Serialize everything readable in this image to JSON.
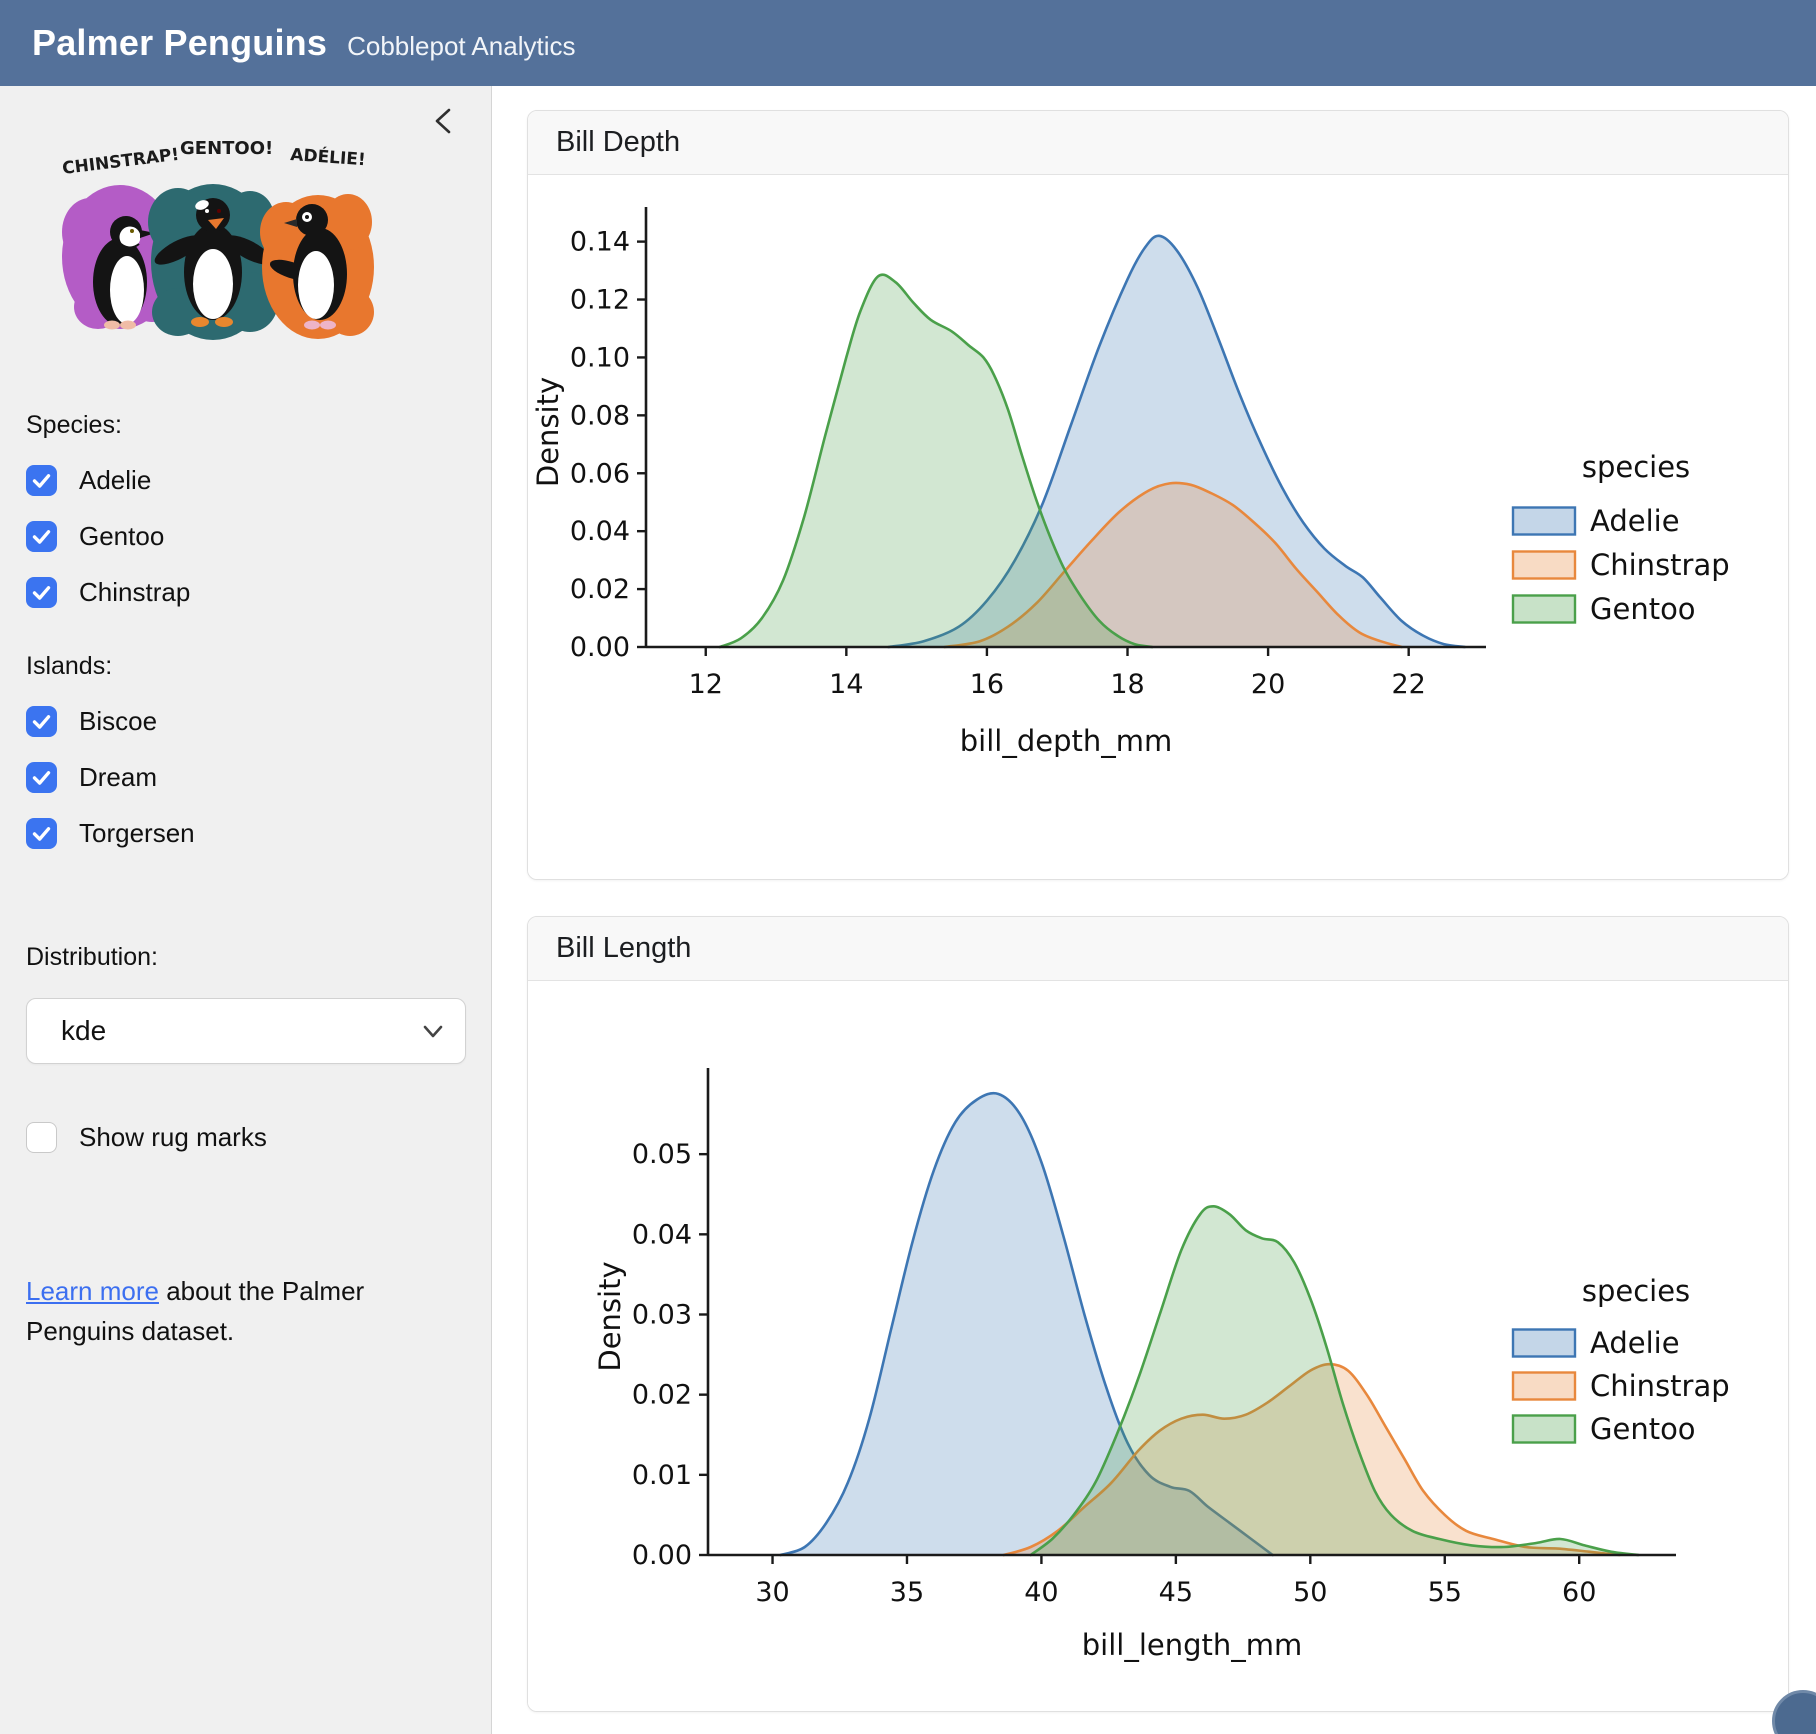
{
  "header": {
    "title": "Palmer Penguins",
    "subtitle": "Cobblepot Analytics"
  },
  "sidebar": {
    "artwork": {
      "labels": [
        "CHINSTRAP!",
        "GENTOO!",
        "ADÉLIE!"
      ]
    },
    "species": {
      "label": "Species:",
      "options": [
        {
          "label": "Adelie",
          "checked": true
        },
        {
          "label": "Gentoo",
          "checked": true
        },
        {
          "label": "Chinstrap",
          "checked": true
        }
      ]
    },
    "islands": {
      "label": "Islands:",
      "options": [
        {
          "label": "Biscoe",
          "checked": true
        },
        {
          "label": "Dream",
          "checked": true
        },
        {
          "label": "Torgersen",
          "checked": true
        }
      ]
    },
    "distribution": {
      "label": "Distribution:",
      "value": "kde"
    },
    "rug": {
      "label": "Show rug marks",
      "checked": false
    },
    "learn_more": {
      "link_text": "Learn more",
      "rest_text": " about the Palmer Penguins dataset."
    }
  },
  "cards": [
    {
      "title": "Bill Depth"
    },
    {
      "title": "Bill Length"
    }
  ],
  "colors": {
    "header_bg": "#54719a",
    "checkbox_blue": "#3b74f0",
    "link_blue": "#3c6ff0",
    "adelie": "#3d76b3",
    "chinstrap": "#e8883d",
    "gentoo": "#4aa04a"
  },
  "chart_data": [
    {
      "type": "area",
      "title": "Bill Depth",
      "xlabel": "bill_depth_mm",
      "ylabel": "Density",
      "xlim": [
        11.15,
        23.1
      ],
      "ylim": [
        0,
        0.1485
      ],
      "x_ticks": [
        12,
        14,
        16,
        18,
        20,
        22
      ],
      "x_tick_labels": [
        "12",
        "14",
        "16",
        "18",
        "20",
        "22"
      ],
      "y_ticks": [
        0.0,
        0.02,
        0.04,
        0.06,
        0.08,
        0.1,
        0.12,
        0.14
      ],
      "y_tick_labels": [
        "0.00",
        "0.02",
        "0.04",
        "0.06",
        "0.08",
        "0.10",
        "0.12",
        "0.14"
      ],
      "grid": false,
      "legend": {
        "title": "species",
        "position": "center right",
        "entries": [
          "Adelie",
          "Chinstrap",
          "Gentoo"
        ]
      },
      "series": [
        {
          "name": "Adelie",
          "color": "#3d76b3",
          "points": [
            [
              14.6,
              0
            ],
            [
              15.1,
              0.002
            ],
            [
              15.6,
              0.007
            ],
            [
              16.0,
              0.016
            ],
            [
              16.4,
              0.03
            ],
            [
              16.8,
              0.05
            ],
            [
              17.2,
              0.077
            ],
            [
              17.6,
              0.104
            ],
            [
              18.0,
              0.127
            ],
            [
              18.25,
              0.138
            ],
            [
              18.45,
              0.142
            ],
            [
              18.7,
              0.137
            ],
            [
              19.0,
              0.124
            ],
            [
              19.3,
              0.106
            ],
            [
              19.6,
              0.087
            ],
            [
              19.9,
              0.07
            ],
            [
              20.2,
              0.055
            ],
            [
              20.5,
              0.043
            ],
            [
              20.8,
              0.034
            ],
            [
              21.1,
              0.028
            ],
            [
              21.35,
              0.024
            ],
            [
              21.6,
              0.017
            ],
            [
              21.9,
              0.009
            ],
            [
              22.2,
              0.004
            ],
            [
              22.5,
              0.001
            ],
            [
              22.8,
              0
            ]
          ]
        },
        {
          "name": "Chinstrap",
          "color": "#e8883d",
          "points": [
            [
              15.4,
              0
            ],
            [
              15.9,
              0.002
            ],
            [
              16.3,
              0.007
            ],
            [
              16.7,
              0.015
            ],
            [
              17.1,
              0.026
            ],
            [
              17.5,
              0.037
            ],
            [
              17.9,
              0.047
            ],
            [
              18.3,
              0.054
            ],
            [
              18.6,
              0.0565
            ],
            [
              18.9,
              0.056
            ],
            [
              19.2,
              0.053
            ],
            [
              19.5,
              0.049
            ],
            [
              19.8,
              0.043
            ],
            [
              20.1,
              0.036
            ],
            [
              20.4,
              0.027
            ],
            [
              20.7,
              0.019
            ],
            [
              21.0,
              0.011
            ],
            [
              21.3,
              0.005
            ],
            [
              21.6,
              0.002
            ],
            [
              21.9,
              0
            ]
          ]
        },
        {
          "name": "Gentoo",
          "color": "#4aa04a",
          "points": [
            [
              12.2,
              0
            ],
            [
              12.5,
              0.003
            ],
            [
              12.8,
              0.01
            ],
            [
              13.1,
              0.023
            ],
            [
              13.4,
              0.045
            ],
            [
              13.7,
              0.073
            ],
            [
              14.0,
              0.1
            ],
            [
              14.2,
              0.116
            ],
            [
              14.45,
              0.128
            ],
            [
              14.7,
              0.126
            ],
            [
              14.95,
              0.119
            ],
            [
              15.2,
              0.113
            ],
            [
              15.5,
              0.109
            ],
            [
              15.75,
              0.104
            ],
            [
              15.95,
              0.1
            ],
            [
              16.1,
              0.094
            ],
            [
              16.3,
              0.082
            ],
            [
              16.5,
              0.066
            ],
            [
              16.7,
              0.051
            ],
            [
              16.9,
              0.038
            ],
            [
              17.1,
              0.027
            ],
            [
              17.35,
              0.017
            ],
            [
              17.6,
              0.009
            ],
            [
              17.85,
              0.004
            ],
            [
              18.1,
              0.001
            ],
            [
              18.35,
              0
            ]
          ]
        }
      ]
    },
    {
      "type": "area",
      "title": "Bill Length",
      "xlabel": "bill_length_mm",
      "ylabel": "Density",
      "xlim": [
        27.6,
        63.6
      ],
      "ylim": [
        0,
        0.0595
      ],
      "x_ticks": [
        30,
        35,
        40,
        45,
        50,
        55,
        60
      ],
      "x_tick_labels": [
        "30",
        "35",
        "40",
        "45",
        "50",
        "55",
        "60"
      ],
      "y_ticks": [
        0.0,
        0.01,
        0.02,
        0.03,
        0.04,
        0.05
      ],
      "y_tick_labels": [
        "0.00",
        "0.01",
        "0.02",
        "0.03",
        "0.04",
        "0.05"
      ],
      "grid": false,
      "legend": {
        "title": "species",
        "position": "center right",
        "entries": [
          "Adelie",
          "Chinstrap",
          "Gentoo"
        ]
      },
      "series": [
        {
          "name": "Adelie",
          "color": "#3d76b3",
          "points": [
            [
              30.3,
              0
            ],
            [
              31.2,
              0.001
            ],
            [
              32.0,
              0.004
            ],
            [
              32.8,
              0.009
            ],
            [
              33.6,
              0.017
            ],
            [
              34.4,
              0.028
            ],
            [
              35.2,
              0.039
            ],
            [
              36.0,
              0.048
            ],
            [
              36.8,
              0.054
            ],
            [
              37.6,
              0.0568
            ],
            [
              38.4,
              0.0575
            ],
            [
              39.2,
              0.055
            ],
            [
              40.0,
              0.049
            ],
            [
              40.8,
              0.04
            ],
            [
              41.6,
              0.03
            ],
            [
              42.4,
              0.021
            ],
            [
              43.2,
              0.014
            ],
            [
              44.0,
              0.01
            ],
            [
              44.8,
              0.0085
            ],
            [
              45.5,
              0.008
            ],
            [
              46.2,
              0.006
            ],
            [
              47.0,
              0.004
            ],
            [
              47.8,
              0.002
            ],
            [
              48.6,
              0
            ]
          ]
        },
        {
          "name": "Chinstrap",
          "color": "#e8883d",
          "points": [
            [
              38.6,
              0
            ],
            [
              39.6,
              0.001
            ],
            [
              40.6,
              0.003
            ],
            [
              41.6,
              0.006
            ],
            [
              42.6,
              0.009
            ],
            [
              43.6,
              0.013
            ],
            [
              44.4,
              0.0155
            ],
            [
              45.2,
              0.017
            ],
            [
              46.0,
              0.0175
            ],
            [
              46.8,
              0.017
            ],
            [
              47.6,
              0.0175
            ],
            [
              48.4,
              0.019
            ],
            [
              49.2,
              0.021
            ],
            [
              50.0,
              0.023
            ],
            [
              50.7,
              0.0238
            ],
            [
              51.4,
              0.023
            ],
            [
              52.1,
              0.02
            ],
            [
              52.8,
              0.016
            ],
            [
              53.5,
              0.012
            ],
            [
              54.2,
              0.008
            ],
            [
              55.0,
              0.005
            ],
            [
              55.8,
              0.003
            ],
            [
              56.8,
              0.002
            ],
            [
              58.0,
              0.001
            ],
            [
              59.2,
              0.0008
            ],
            [
              60.4,
              0.0004
            ],
            [
              61.5,
              0
            ]
          ]
        },
        {
          "name": "Gentoo",
          "color": "#4aa04a",
          "points": [
            [
              39.6,
              0
            ],
            [
              40.4,
              0.002
            ],
            [
              41.2,
              0.005
            ],
            [
              42.0,
              0.009
            ],
            [
              42.8,
              0.015
            ],
            [
              43.6,
              0.022
            ],
            [
              44.4,
              0.03
            ],
            [
              45.2,
              0.038
            ],
            [
              45.9,
              0.0425
            ],
            [
              46.4,
              0.0435
            ],
            [
              47.0,
              0.0425
            ],
            [
              47.6,
              0.0405
            ],
            [
              48.2,
              0.0395
            ],
            [
              48.8,
              0.039
            ],
            [
              49.4,
              0.0365
            ],
            [
              50.0,
              0.032
            ],
            [
              50.6,
              0.026
            ],
            [
              51.2,
              0.019
            ],
            [
              51.8,
              0.013
            ],
            [
              52.4,
              0.008
            ],
            [
              53.0,
              0.005
            ],
            [
              53.8,
              0.003
            ],
            [
              54.8,
              0.002
            ],
            [
              56.0,
              0.0012
            ],
            [
              57.2,
              0.001
            ],
            [
              58.4,
              0.0015
            ],
            [
              59.3,
              0.002
            ],
            [
              60.2,
              0.0012
            ],
            [
              61.2,
              0.0004
            ],
            [
              62.2,
              0
            ]
          ]
        }
      ]
    }
  ]
}
